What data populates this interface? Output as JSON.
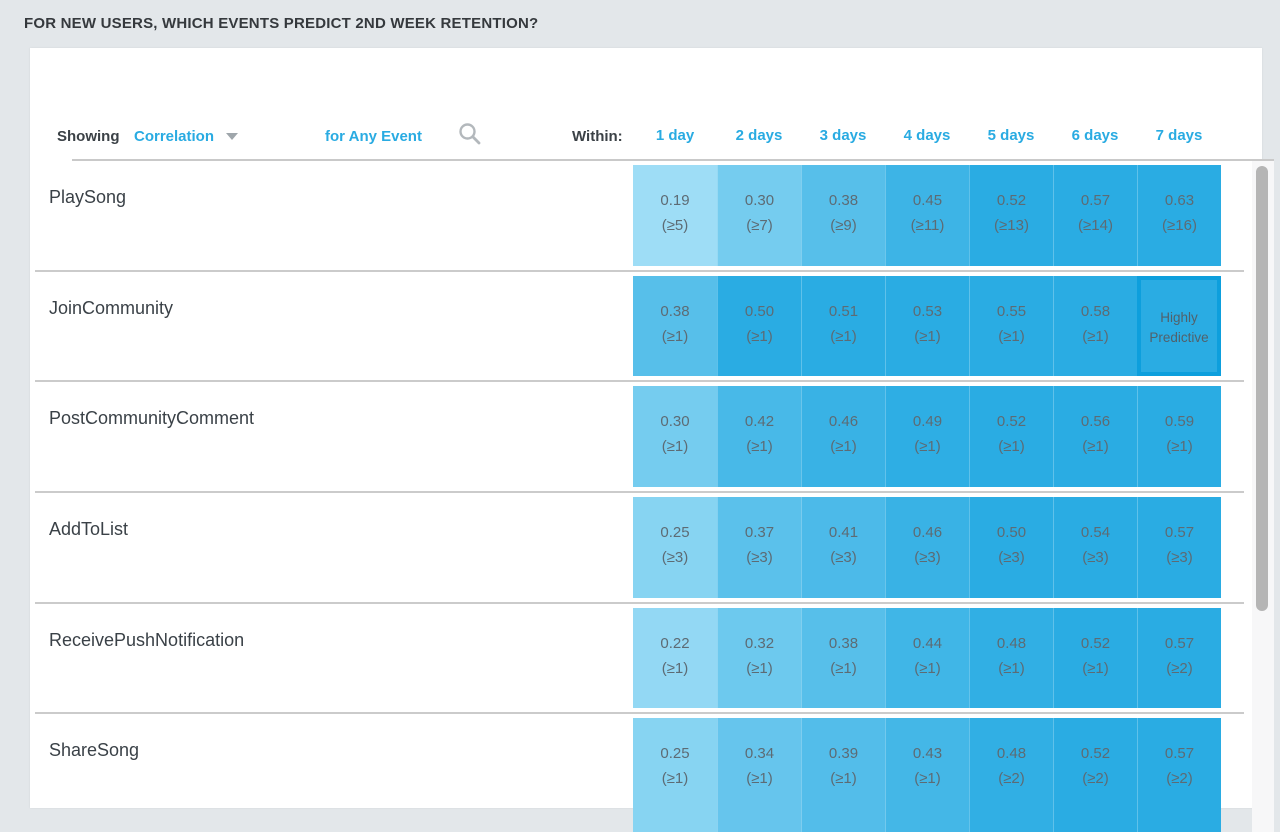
{
  "page": {
    "title": "FOR NEW USERS, WHICH EVENTS PREDICT 2ND WEEK RETENTION?"
  },
  "toolbar": {
    "showing_label": "Showing",
    "metric_value": "Correlation",
    "event_filter": "for Any Event",
    "within_label": "Within:"
  },
  "columns": [
    "1 day",
    "2 days",
    "3 days",
    "4 days",
    "5 days",
    "6 days",
    "7 days"
  ],
  "rows": [
    {
      "event": "PlaySong",
      "cells": [
        {
          "value": "0.19",
          "threshold": "(≥5)"
        },
        {
          "value": "0.30",
          "threshold": "(≥7)"
        },
        {
          "value": "0.38",
          "threshold": "(≥9)"
        },
        {
          "value": "0.45",
          "threshold": "(≥11)"
        },
        {
          "value": "0.52",
          "threshold": "(≥13)"
        },
        {
          "value": "0.57",
          "threshold": "(≥14)"
        },
        {
          "value": "0.63",
          "threshold": "(≥16)"
        }
      ]
    },
    {
      "event": "JoinCommunity",
      "cells": [
        {
          "value": "0.38",
          "threshold": "(≥1)"
        },
        {
          "value": "0.50",
          "threshold": "(≥1)"
        },
        {
          "value": "0.51",
          "threshold": "(≥1)"
        },
        {
          "value": "0.53",
          "threshold": "(≥1)"
        },
        {
          "value": "0.55",
          "threshold": "(≥1)"
        },
        {
          "value": "0.58",
          "threshold": "(≥1)"
        },
        {
          "text": "Highly Predictive",
          "highlighted": true
        }
      ]
    },
    {
      "event": "PostCommunityComment",
      "cells": [
        {
          "value": "0.30",
          "threshold": "(≥1)"
        },
        {
          "value": "0.42",
          "threshold": "(≥1)"
        },
        {
          "value": "0.46",
          "threshold": "(≥1)"
        },
        {
          "value": "0.49",
          "threshold": "(≥1)"
        },
        {
          "value": "0.52",
          "threshold": "(≥1)"
        },
        {
          "value": "0.56",
          "threshold": "(≥1)"
        },
        {
          "value": "0.59",
          "threshold": "(≥1)"
        }
      ]
    },
    {
      "event": "AddToList",
      "cells": [
        {
          "value": "0.25",
          "threshold": "(≥3)"
        },
        {
          "value": "0.37",
          "threshold": "(≥3)"
        },
        {
          "value": "0.41",
          "threshold": "(≥3)"
        },
        {
          "value": "0.46",
          "threshold": "(≥3)"
        },
        {
          "value": "0.50",
          "threshold": "(≥3)"
        },
        {
          "value": "0.54",
          "threshold": "(≥3)"
        },
        {
          "value": "0.57",
          "threshold": "(≥3)"
        }
      ]
    },
    {
      "event": "ReceivePushNotification",
      "cells": [
        {
          "value": "0.22",
          "threshold": "(≥1)"
        },
        {
          "value": "0.32",
          "threshold": "(≥1)"
        },
        {
          "value": "0.38",
          "threshold": "(≥1)"
        },
        {
          "value": "0.44",
          "threshold": "(≥1)"
        },
        {
          "value": "0.48",
          "threshold": "(≥1)"
        },
        {
          "value": "0.52",
          "threshold": "(≥1)"
        },
        {
          "value": "0.57",
          "threshold": "(≥2)"
        }
      ]
    },
    {
      "event": "ShareSong",
      "cells": [
        {
          "value": "0.25",
          "threshold": "(≥1)"
        },
        {
          "value": "0.34",
          "threshold": "(≥1)"
        },
        {
          "value": "0.39",
          "threshold": "(≥1)"
        },
        {
          "value": "0.43",
          "threshold": "(≥1)"
        },
        {
          "value": "0.48",
          "threshold": "(≥2)"
        },
        {
          "value": "0.52",
          "threshold": "(≥2)"
        },
        {
          "value": "0.57",
          "threshold": "(≥2)"
        }
      ]
    }
  ],
  "colors": {
    "accent_blue": "#29ABE2",
    "heat_low": "#A9E2F8",
    "heat_high": "#2AACE3",
    "heat_domain": [
      0.16,
      0.5
    ],
    "highlight_border": "#0D9FDD",
    "cell_text": "#5D6B74",
    "divider": "#CBCBCB",
    "page_bg": "#E3E7EA",
    "scrollbar_thumb": "#B5B5B5"
  },
  "chart_data": {
    "type": "heatmap",
    "title": "FOR NEW USERS, WHICH EVENTS PREDICT 2ND WEEK RETENTION?",
    "metric": "Correlation",
    "filter": "for Any Event",
    "x_categories": [
      "1 day",
      "2 days",
      "3 days",
      "4 days",
      "5 days",
      "6 days",
      "7 days"
    ],
    "y_categories": [
      "PlaySong",
      "JoinCommunity",
      "PostCommunityComment",
      "AddToList",
      "ReceivePushNotification",
      "ShareSong"
    ],
    "correlations": [
      [
        0.19,
        0.3,
        0.38,
        0.45,
        0.52,
        0.57,
        0.63
      ],
      [
        0.38,
        0.5,
        0.51,
        0.53,
        0.55,
        0.58,
        null
      ],
      [
        0.3,
        0.42,
        0.46,
        0.49,
        0.52,
        0.56,
        0.59
      ],
      [
        0.25,
        0.37,
        0.41,
        0.46,
        0.5,
        0.54,
        0.57
      ],
      [
        0.22,
        0.32,
        0.38,
        0.44,
        0.48,
        0.52,
        0.57
      ],
      [
        0.25,
        0.34,
        0.39,
        0.43,
        0.48,
        0.52,
        0.57
      ]
    ],
    "thresholds": [
      [
        5,
        7,
        9,
        11,
        13,
        14,
        16
      ],
      [
        1,
        1,
        1,
        1,
        1,
        1,
        null
      ],
      [
        1,
        1,
        1,
        1,
        1,
        1,
        1
      ],
      [
        3,
        3,
        3,
        3,
        3,
        3,
        3
      ],
      [
        1,
        1,
        1,
        1,
        1,
        1,
        2
      ],
      [
        1,
        1,
        1,
        1,
        2,
        2,
        2
      ]
    ],
    "annotations": [
      {
        "row": "JoinCommunity",
        "column": "7 days",
        "text": "Highly Predictive"
      }
    ],
    "legend_position": "none",
    "grid": false
  }
}
